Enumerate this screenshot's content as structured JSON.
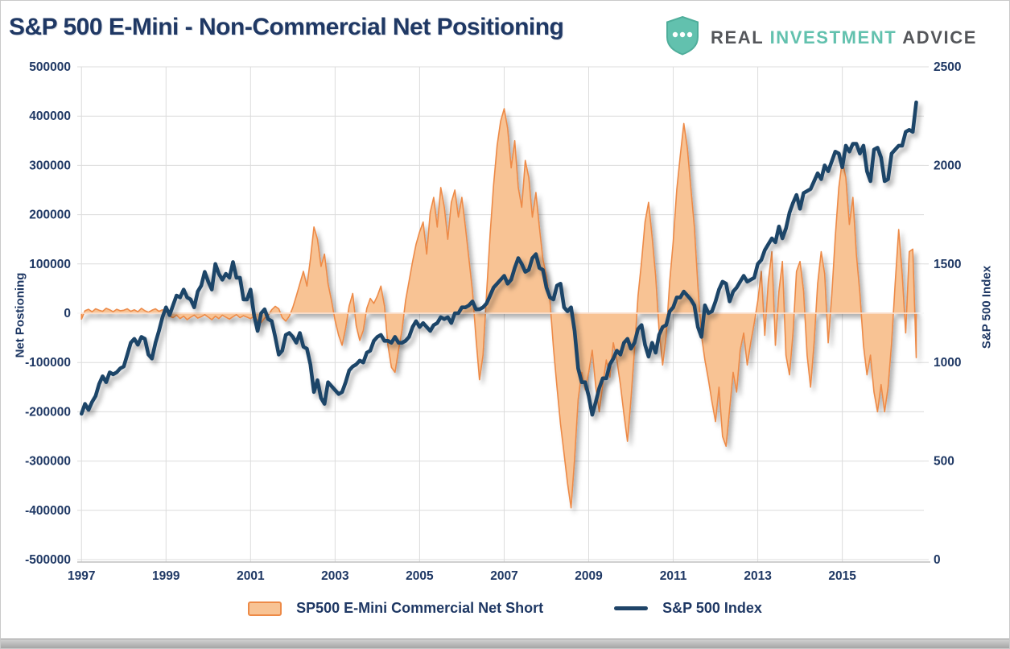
{
  "title": "S&P 500 E-Mini - Non-Commercial Net Positioning",
  "logo": {
    "real": "REAL",
    "investment": "INVESTMENT",
    "advice": "ADVICE",
    "shield_color": "#62C1AE",
    "shield_border": "#4FAE9B",
    "gray": "#54565A",
    "teal": "#62C1AE"
  },
  "left_axis": {
    "title": "Net Postioning",
    "tick_labels": [
      "500000",
      "400000",
      "300000",
      "200000",
      "100000",
      "0",
      "-100000",
      "-200000",
      "-300000",
      "-400000",
      "-500000"
    ],
    "tick_values": [
      500000,
      400000,
      300000,
      200000,
      100000,
      0,
      -100000,
      -200000,
      -300000,
      -400000,
      -500000
    ]
  },
  "right_axis": {
    "title": "S&P 500 Index",
    "tick_labels": [
      "2500",
      "2000",
      "1500",
      "1000",
      "500",
      "0"
    ],
    "tick_values": [
      2500,
      2000,
      1500,
      1000,
      500,
      0
    ]
  },
  "x_axis": {
    "tick_labels": [
      "1997",
      "1999",
      "2001",
      "2003",
      "2005",
      "2007",
      "2009",
      "2011",
      "2013",
      "2015"
    ],
    "tick_values": [
      1997,
      1999,
      2001,
      2003,
      2005,
      2007,
      2009,
      2011,
      2013,
      2015
    ]
  },
  "legend": {
    "items": [
      {
        "label": "SP500 E-Mini Commercial Net Short",
        "type": "area",
        "fill": "#F8C394",
        "stroke": "#ED8A47"
      },
      {
        "label": "S&P 500 Index",
        "type": "line",
        "color": "#1F4468"
      }
    ]
  },
  "colors": {
    "navy_text": "#1F3864",
    "line": "#1F4468",
    "area_fill": "#F8C394",
    "area_stroke": "#ED8A47",
    "grid": "#DCDCDC",
    "axis_line": "#BFBFBF"
  },
  "chart_data": {
    "type": "combo",
    "x_range": [
      1996.9,
      2016.93
    ],
    "left_ylim": [
      -500000,
      500000
    ],
    "right_ylim": [
      0,
      2500
    ],
    "grid": true,
    "legend_position": "bottom",
    "series": [
      {
        "name": "SP500 E-Mini Commercial Net Short",
        "type": "area",
        "axis": "left",
        "x_start": 1997.0,
        "x_step_years": 0.0833333,
        "unit": "contracts net positioning",
        "values": [
          -12000,
          5000,
          8000,
          3000,
          9000,
          6000,
          4000,
          10000,
          7000,
          3000,
          8000,
          5000,
          6000,
          9000,
          4000,
          7000,
          3000,
          10000,
          5000,
          2000,
          6000,
          9000,
          4000,
          7000,
          3000,
          -6000,
          -9000,
          -4000,
          -11000,
          -6000,
          -13000,
          -8000,
          -4000,
          -10000,
          -7000,
          -3000,
          -8000,
          -13000,
          -6000,
          -11000,
          -4000,
          -8000,
          -12000,
          -7000,
          -3000,
          -9000,
          -5000,
          -8000,
          -11000,
          -6000,
          -15000,
          -19000,
          -10000,
          -5000,
          7000,
          14000,
          9000,
          -9000,
          -16000,
          -6000,
          12000,
          35000,
          60000,
          85000,
          55000,
          110000,
          175000,
          150000,
          95000,
          120000,
          60000,
          25000,
          -15000,
          -45000,
          -65000,
          -30000,
          15000,
          40000,
          -25000,
          -55000,
          -35000,
          10000,
          30000,
          20000,
          35000,
          55000,
          15000,
          -65000,
          -110000,
          -120000,
          -75000,
          -35000,
          25000,
          65000,
          105000,
          140000,
          165000,
          185000,
          120000,
          205000,
          235000,
          175000,
          255000,
          215000,
          150000,
          225000,
          250000,
          195000,
          235000,
          175000,
          110000,
          45000,
          -50000,
          -135000,
          -85000,
          40000,
          160000,
          260000,
          340000,
          390000,
          415000,
          375000,
          295000,
          350000,
          255000,
          215000,
          310000,
          275000,
          195000,
          245000,
          175000,
          110000,
          75000,
          25000,
          -70000,
          -150000,
          -225000,
          -285000,
          -345000,
          -395000,
          -295000,
          -175000,
          -120000,
          -155000,
          -120000,
          -75000,
          -150000,
          -200000,
          -145000,
          -95000,
          -130000,
          -60000,
          -95000,
          -145000,
          -205000,
          -260000,
          -175000,
          -75000,
          35000,
          105000,
          185000,
          225000,
          155000,
          75000,
          -35000,
          -105000,
          -45000,
          65000,
          145000,
          250000,
          320000,
          385000,
          335000,
          255000,
          175000,
          55000,
          -45000,
          -95000,
          -135000,
          -180000,
          -220000,
          -150000,
          -250000,
          -270000,
          -195000,
          -120000,
          -160000,
          -75000,
          -40000,
          -105000,
          -60000,
          -20000,
          25000,
          85000,
          -45000,
          65000,
          125000,
          -65000,
          45000,
          105000,
          -85000,
          -125000,
          -40000,
          85000,
          105000,
          45000,
          -85000,
          -150000,
          -60000,
          60000,
          125000,
          80000,
          -60000,
          35000,
          155000,
          255000,
          310000,
          275000,
          180000,
          235000,
          120000,
          40000,
          -65000,
          -125000,
          -85000,
          -160000,
          -200000,
          -145000,
          -200000,
          -150000,
          -60000,
          60000,
          170000,
          80000,
          -40000,
          125000,
          130000,
          -90000
        ]
      },
      {
        "name": "S&P 500 Index",
        "type": "line",
        "axis": "right",
        "x_start": 1997.0,
        "x_step_years": 0.0833333,
        "unit": "index points",
        "values": [
          740,
          790,
          760,
          800,
          830,
          890,
          930,
          900,
          950,
          940,
          950,
          970,
          980,
          1040,
          1100,
          1120,
          1090,
          1130,
          1120,
          1040,
          1020,
          1100,
          1160,
          1230,
          1280,
          1240,
          1290,
          1340,
          1330,
          1370,
          1330,
          1320,
          1280,
          1360,
          1390,
          1460,
          1410,
          1370,
          1500,
          1450,
          1420,
          1450,
          1430,
          1510,
          1430,
          1430,
          1320,
          1320,
          1370,
          1240,
          1160,
          1250,
          1270,
          1220,
          1210,
          1130,
          1040,
          1060,
          1140,
          1150,
          1130,
          1100,
          1150,
          1080,
          1070,
          990,
          850,
          910,
          820,
          790,
          900,
          880,
          860,
          840,
          850,
          900,
          960,
          980,
          990,
          1010,
          1000,
          1050,
          1060,
          1110,
          1130,
          1140,
          1110,
          1110,
          1100,
          1130,
          1100,
          1100,
          1110,
          1130,
          1180,
          1210,
          1180,
          1200,
          1180,
          1160,
          1190,
          1200,
          1230,
          1220,
          1230,
          1200,
          1250,
          1250,
          1280,
          1280,
          1290,
          1310,
          1270,
          1270,
          1280,
          1300,
          1340,
          1380,
          1400,
          1420,
          1440,
          1400,
          1420,
          1480,
          1530,
          1500,
          1460,
          1470,
          1530,
          1550,
          1480,
          1470,
          1380,
          1330,
          1320,
          1390,
          1400,
          1280,
          1260,
          1280,
          1160,
          970,
          900,
          900,
          830,
          735,
          800,
          870,
          920,
          920,
          990,
          1020,
          1060,
          1040,
          1100,
          1120,
          1070,
          1100,
          1170,
          1190,
          1090,
          1030,
          1100,
          1050,
          1140,
          1180,
          1190,
          1260,
          1280,
          1330,
          1330,
          1360,
          1340,
          1320,
          1290,
          1180,
          1130,
          1290,
          1250,
          1260,
          1310,
          1370,
          1410,
          1400,
          1310,
          1360,
          1380,
          1410,
          1440,
          1410,
          1420,
          1430,
          1500,
          1520,
          1570,
          1600,
          1630,
          1610,
          1690,
          1630,
          1680,
          1760,
          1810,
          1850,
          1780,
          1860,
          1870,
          1880,
          1920,
          1960,
          1930,
          2000,
          1970,
          2020,
          2070,
          2060,
          1990,
          2100,
          2070,
          2110,
          2110,
          2060,
          2100,
          1970,
          1920,
          2080,
          2090,
          2040,
          1920,
          1930,
          2060,
          2080,
          2100,
          2100,
          2170,
          2180,
          2170,
          2320
        ]
      }
    ]
  }
}
